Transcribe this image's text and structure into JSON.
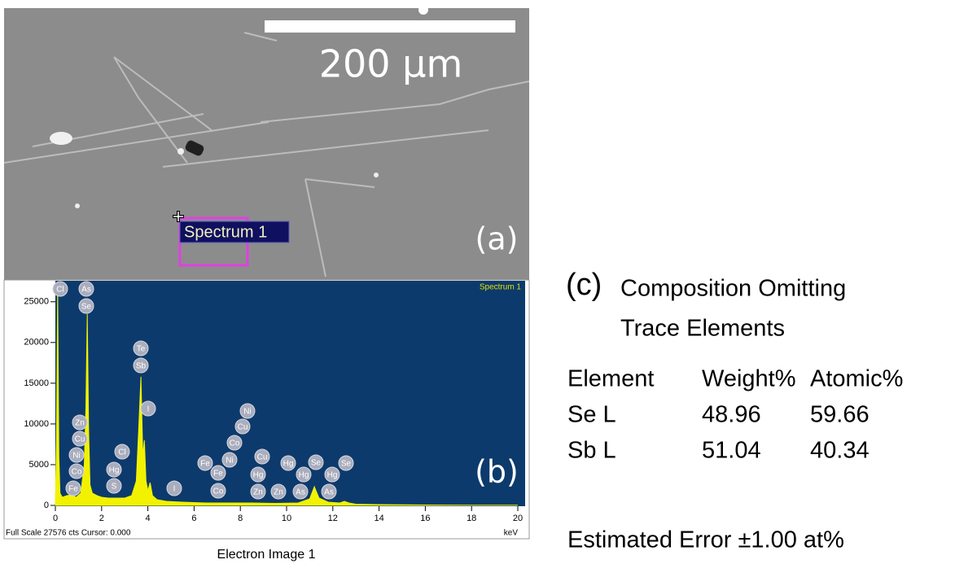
{
  "panel_a": {
    "scale_bar": "200 µm",
    "label": "(a)",
    "spectrum_label": "Spectrum 1"
  },
  "chart_data": {
    "type": "area",
    "subtitle": "Spectrum 1",
    "panel_label": "(b)",
    "xlabel": "keV",
    "footer": "Full Scale 27576 cts Cursor: 0.000",
    "caption": "Electron Image 1",
    "color": "#f2f200",
    "x": [
      0,
      0.05,
      0.1,
      0.15,
      0.2,
      0.3,
      0.5,
      0.7,
      0.9,
      1.1,
      1.25,
      1.32,
      1.38,
      1.44,
      1.5,
      1.6,
      1.8,
      2.0,
      2.3,
      2.6,
      3.0,
      3.3,
      3.5,
      3.6,
      3.7,
      3.78,
      3.85,
      3.92,
      4.0,
      4.1,
      4.2,
      4.4,
      4.8,
      5.5,
      6.5,
      7.5,
      8.5,
      9.5,
      10.5,
      11.0,
      11.2,
      11.4,
      11.8,
      12.3,
      12.5,
      12.7,
      13.0,
      14,
      16,
      18,
      20
    ],
    "values": [
      0,
      8000,
      27000,
      6000,
      1500,
      1000,
      1200,
      1300,
      1000,
      1500,
      5000,
      12000,
      23500,
      9000,
      2500,
      1500,
      1200,
      1000,
      900,
      900,
      900,
      1200,
      3000,
      9000,
      15800,
      6000,
      8000,
      3000,
      1800,
      2800,
      1200,
      700,
      500,
      400,
      300,
      300,
      300,
      250,
      300,
      800,
      2300,
      900,
      400,
      300,
      500,
      300,
      150,
      100,
      50,
      30,
      20
    ],
    "xlim": [
      0,
      20
    ],
    "xticks": [
      0,
      2,
      4,
      6,
      8,
      10,
      12,
      14,
      16,
      18,
      20
    ],
    "ylim": [
      0,
      27576
    ],
    "yticks": [
      0,
      5000,
      10000,
      15000,
      20000,
      25000
    ],
    "peak_labels": [
      "Cl",
      "As",
      "Se",
      "Te",
      "Sb",
      "Zn",
      "Cu",
      "Ni",
      "Co",
      "Fe",
      "Cl",
      "Hg",
      "S",
      "I",
      "I",
      "Fe",
      "Fe",
      "Co",
      "Ni",
      "Ni",
      "Cu",
      "Co",
      "Cu",
      "Hg",
      "Zn",
      "Zn",
      "Hg",
      "Hg",
      "As",
      "Se",
      "As",
      "Hg",
      "Se"
    ]
  },
  "panel_c": {
    "label": "(c)",
    "title_lines": [
      "Composition Omitting",
      "Trace Elements"
    ],
    "table": {
      "header": [
        "Element",
        "Weight%",
        "Atomic%"
      ],
      "rows": [
        [
          "Se L",
          48.96,
          59.66
        ],
        [
          "Sb L",
          51.04,
          40.34
        ]
      ]
    },
    "note": "Estimated Error ±1.00 at%"
  }
}
